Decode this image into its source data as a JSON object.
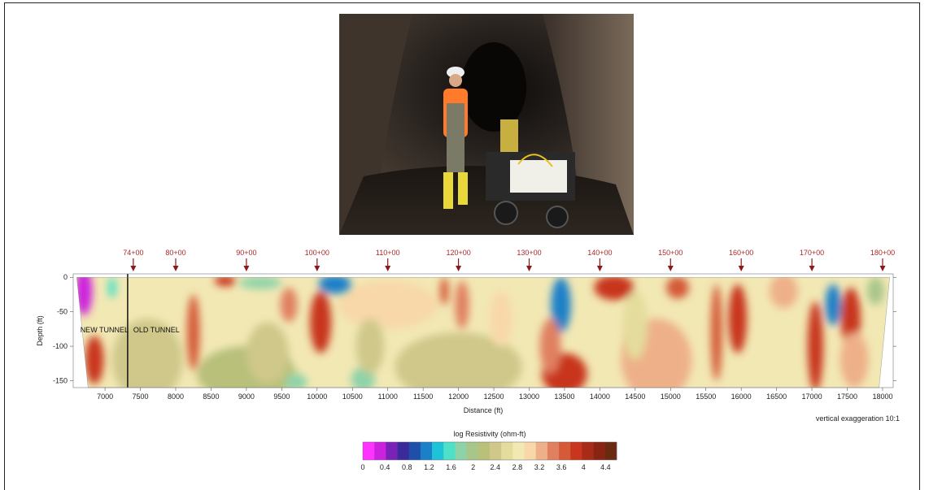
{
  "chart_data": {
    "type": "heatmap",
    "title": "",
    "xlabel": "Distance (ft)",
    "ylabel": "Depth (ft)",
    "xlim": [
      6550,
      18150
    ],
    "ylim": [
      -160,
      5
    ],
    "x_ticks": [
      7000,
      7500,
      8000,
      8500,
      9000,
      9500,
      10000,
      10500,
      11000,
      11500,
      12000,
      12500,
      13000,
      13500,
      14000,
      14500,
      15000,
      15500,
      16000,
      16500,
      17000,
      17500,
      18000
    ],
    "y_ticks": [
      0,
      -50,
      -100,
      -150
    ],
    "stations": [
      {
        "label": "74+00",
        "x": 7400
      },
      {
        "label": "80+00",
        "x": 8000
      },
      {
        "label": "90+00",
        "x": 9000
      },
      {
        "label": "100+00",
        "x": 10000
      },
      {
        "label": "110+00",
        "x": 11000
      },
      {
        "label": "120+00",
        "x": 12000
      },
      {
        "label": "130+00",
        "x": 13000
      },
      {
        "label": "140+00",
        "x": 14000
      },
      {
        "label": "150+00",
        "x": 15000
      },
      {
        "label": "160+00",
        "x": 16000
      },
      {
        "label": "170+00",
        "x": 17000
      },
      {
        "label": "180+00",
        "x": 18000
      }
    ],
    "annotations": [
      {
        "text": "NEW TUNNEL",
        "x": 6650,
        "y": -80
      },
      {
        "text": "OLD TUNNEL",
        "x": 7400,
        "y": -80
      }
    ],
    "divider_x": 7320,
    "note": "vertical exaggeration 10:1",
    "colorbar": {
      "label": "log Resistivity (ohm-ft)",
      "ticks": [
        0,
        0.4,
        0.8,
        1.2,
        1.6,
        2,
        2.4,
        2.8,
        3.2,
        3.6,
        4,
        4.4
      ],
      "colors": [
        "#ff33ff",
        "#cc22dd",
        "#7a22b8",
        "#3a2a9a",
        "#1f4fa8",
        "#1a80c8",
        "#1ec3d8",
        "#4fe0c8",
        "#8ed3a8",
        "#a8c68a",
        "#b8c07a",
        "#cfc88a",
        "#e4dc9c",
        "#f2e8b4",
        "#f8d8a8",
        "#eeb088",
        "#e08060",
        "#d45a38",
        "#c8361e",
        "#a82a18",
        "#8a2412",
        "#6a2a12"
      ]
    },
    "anomalies": [
      {
        "x": 6700,
        "y": -20,
        "v": 0.3,
        "rx": 120,
        "ry": 35
      },
      {
        "x": 6850,
        "y": -120,
        "v": 3.9,
        "rx": 130,
        "ry": 35
      },
      {
        "x": 7100,
        "y": -15,
        "v": 1.6,
        "rx": 60,
        "ry": 15
      },
      {
        "x": 8250,
        "y": -80,
        "v": 3.8,
        "rx": 90,
        "ry": 55
      },
      {
        "x": 8700,
        "y": -5,
        "v": 3.9,
        "rx": 150,
        "ry": 8
      },
      {
        "x": 9200,
        "y": -8,
        "v": 1.8,
        "rx": 300,
        "ry": 9
      },
      {
        "x": 9300,
        "y": -110,
        "v": 2.3,
        "rx": 300,
        "ry": 45
      },
      {
        "x": 9600,
        "y": -40,
        "v": 3.4,
        "rx": 120,
        "ry": 25
      },
      {
        "x": 9700,
        "y": -152,
        "v": 1.8,
        "rx": 160,
        "ry": 12
      },
      {
        "x": 10050,
        "y": -65,
        "v": 3.9,
        "rx": 150,
        "ry": 45
      },
      {
        "x": 10250,
        "y": -10,
        "v": 1.0,
        "rx": 230,
        "ry": 14
      },
      {
        "x": 10650,
        "y": -148,
        "v": 1.7,
        "rx": 170,
        "ry": 18
      },
      {
        "x": 10750,
        "y": -100,
        "v": 2.3,
        "rx": 200,
        "ry": 40
      },
      {
        "x": 11800,
        "y": -20,
        "v": 3.8,
        "rx": 60,
        "ry": 20
      },
      {
        "x": 12050,
        "y": -40,
        "v": 3.6,
        "rx": 100,
        "ry": 35
      },
      {
        "x": 12600,
        "y": -60,
        "v": 3.0,
        "rx": 160,
        "ry": 40
      },
      {
        "x": 13450,
        "y": -40,
        "v": 1.0,
        "rx": 140,
        "ry": 40
      },
      {
        "x": 13500,
        "y": -140,
        "v": 3.9,
        "rx": 320,
        "ry": 30
      },
      {
        "x": 13300,
        "y": -100,
        "v": 3.4,
        "rx": 150,
        "ry": 40
      },
      {
        "x": 14200,
        "y": -15,
        "v": 3.9,
        "rx": 280,
        "ry": 18
      },
      {
        "x": 14500,
        "y": -70,
        "v": 2.7,
        "rx": 180,
        "ry": 50
      },
      {
        "x": 15100,
        "y": -15,
        "v": 3.8,
        "rx": 160,
        "ry": 16
      },
      {
        "x": 15650,
        "y": -80,
        "v": 3.8,
        "rx": 80,
        "ry": 70
      },
      {
        "x": 15950,
        "y": -60,
        "v": 3.9,
        "rx": 130,
        "ry": 50
      },
      {
        "x": 16600,
        "y": -20,
        "v": 3.3,
        "rx": 200,
        "ry": 25
      },
      {
        "x": 17050,
        "y": -100,
        "v": 4.0,
        "rx": 110,
        "ry": 65
      },
      {
        "x": 17300,
        "y": -40,
        "v": 1.2,
        "rx": 110,
        "ry": 30
      },
      {
        "x": 17550,
        "y": -60,
        "v": 3.9,
        "rx": 140,
        "ry": 45
      },
      {
        "x": 17600,
        "y": -120,
        "v": 3.2,
        "rx": 200,
        "ry": 40
      },
      {
        "x": 17900,
        "y": -20,
        "v": 2.0,
        "rx": 120,
        "ry": 20
      }
    ]
  }
}
